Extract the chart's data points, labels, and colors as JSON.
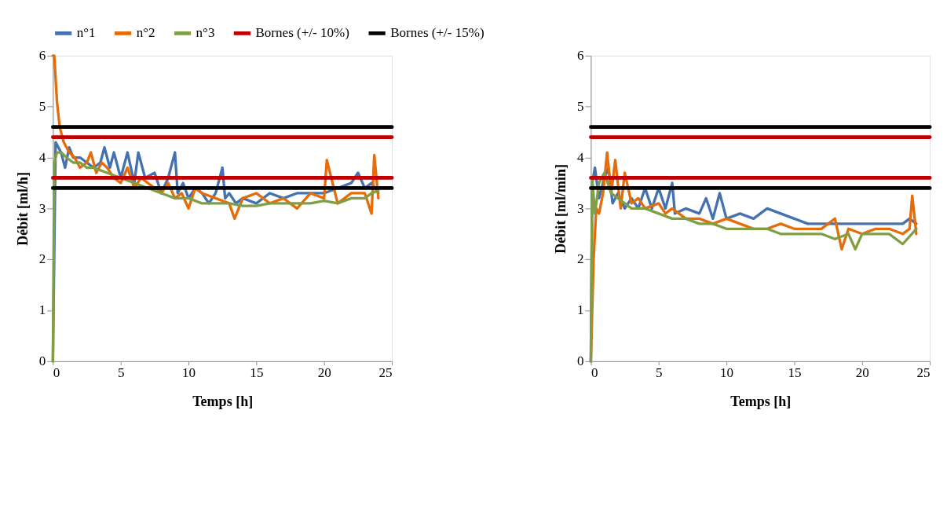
{
  "chart_data": [
    {
      "type": "line",
      "xlabel": "Temps [h]",
      "ylabel": "Débit [ml/h]",
      "xlim": [
        0,
        25
      ],
      "xticks": [
        0,
        5,
        10,
        15,
        20,
        25
      ],
      "ylim": [
        0,
        6
      ],
      "yticks": [
        0,
        1,
        2,
        3,
        4,
        5,
        6
      ],
      "grid": false,
      "legend": "top",
      "marker": "none",
      "line_style": "solid",
      "series": [
        {
          "name": "n°1",
          "color": "#4472b0",
          "x": [
            0,
            0.2,
            0.4,
            0.6,
            0.9,
            1.2,
            1.5,
            2,
            2.5,
            3,
            3.5,
            3.8,
            4.2,
            4.5,
            5,
            5.5,
            6,
            6.3,
            6.8,
            7.5,
            8,
            8.5,
            9,
            9.2,
            9.6,
            10,
            10.5,
            11,
            11.5,
            12,
            12.5,
            12.7,
            13,
            13.5,
            14,
            15,
            16,
            17,
            18,
            19,
            20,
            21,
            22,
            22.5,
            23,
            23.5,
            24
          ],
          "values": [
            0,
            4.3,
            4.2,
            4.1,
            3.8,
            4.2,
            4.0,
            4.0,
            3.9,
            3.8,
            3.9,
            4.2,
            3.8,
            4.1,
            3.6,
            4.1,
            3.5,
            4.1,
            3.6,
            3.7,
            3.3,
            3.6,
            4.1,
            3.3,
            3.5,
            3.2,
            3.4,
            3.3,
            3.1,
            3.3,
            3.8,
            3.2,
            3.3,
            3.1,
            3.2,
            3.1,
            3.3,
            3.2,
            3.3,
            3.3,
            3.3,
            3.4,
            3.5,
            3.7,
            3.4,
            3.5,
            3.3
          ]
        },
        {
          "name": "n°2",
          "color": "#e46c0a",
          "x": [
            0,
            0.1,
            0.3,
            0.5,
            0.8,
            1.2,
            1.6,
            2,
            2.5,
            2.8,
            3.2,
            3.6,
            4,
            4.5,
            5,
            5.5,
            6,
            6.5,
            7,
            7.5,
            8,
            8.5,
            9,
            9.5,
            10,
            10.5,
            11,
            12,
            13,
            13.4,
            14,
            15,
            16,
            17,
            18,
            19,
            20,
            20.2,
            21,
            22,
            23,
            23.5,
            23.7,
            24
          ],
          "values": [
            6,
            6,
            5.1,
            4.6,
            4.3,
            4.1,
            4.0,
            3.8,
            3.9,
            4.1,
            3.7,
            3.9,
            3.8,
            3.6,
            3.5,
            3.8,
            3.4,
            3.6,
            3.5,
            3.4,
            3.3,
            3.5,
            3.2,
            3.3,
            3.0,
            3.4,
            3.3,
            3.2,
            3.1,
            2.8,
            3.2,
            3.3,
            3.1,
            3.2,
            3.0,
            3.3,
            3.2,
            3.95,
            3.1,
            3.3,
            3.3,
            2.9,
            4.05,
            3.2
          ]
        },
        {
          "name": "n°3",
          "color": "#7f9f45",
          "x": [
            0,
            0.1,
            0.3,
            0.6,
            1,
            1.5,
            2,
            2.5,
            3,
            4,
            5,
            6,
            7,
            8,
            9,
            10,
            11,
            12,
            13,
            14,
            15,
            16,
            17,
            18,
            19,
            20,
            21,
            22,
            23,
            23.5,
            24
          ],
          "values": [
            0,
            3.9,
            4.1,
            4.1,
            4.0,
            3.9,
            3.9,
            3.8,
            3.8,
            3.7,
            3.6,
            3.5,
            3.4,
            3.3,
            3.2,
            3.2,
            3.1,
            3.1,
            3.1,
            3.05,
            3.05,
            3.1,
            3.1,
            3.1,
            3.1,
            3.15,
            3.1,
            3.2,
            3.2,
            3.3,
            3.35
          ]
        }
      ],
      "ref_lines": [
        {
          "axis": "y",
          "value": 3.6,
          "label": "Bornes (+/- 10%)",
          "color": "#c00000"
        },
        {
          "axis": "y",
          "value": 4.4,
          "label": null,
          "color": "#c00000"
        },
        {
          "axis": "y",
          "value": 3.4,
          "label": "Bornes (+/- 15%)",
          "color": "#000000"
        },
        {
          "axis": "y",
          "value": 4.6,
          "label": null,
          "color": "#000000"
        }
      ]
    },
    {
      "type": "line",
      "xlabel": "Temps [h]",
      "ylabel": "Débit [ml/min]",
      "xlim": [
        0,
        25
      ],
      "xticks": [
        0,
        5,
        10,
        15,
        20,
        25
      ],
      "ylim": [
        0,
        6
      ],
      "yticks": [
        0,
        1,
        2,
        3,
        4,
        5,
        6
      ],
      "grid": false,
      "marker": "none",
      "line_style": "solid",
      "series": [
        {
          "color": "#4472b0",
          "x": [
            0,
            0.1,
            0.3,
            0.6,
            1,
            1.3,
            1.6,
            2,
            2.5,
            3,
            3.5,
            4,
            4.5,
            5,
            5.5,
            6,
            6.2,
            7,
            8,
            8.5,
            9,
            9.5,
            10,
            11,
            12,
            13,
            14,
            15,
            16,
            17,
            18,
            19,
            20,
            21,
            22,
            23,
            23.5,
            24
          ],
          "values": [
            0,
            3.5,
            3.8,
            3.2,
            3.6,
            3.8,
            3.1,
            3.3,
            3.0,
            3.2,
            3.0,
            3.4,
            3.0,
            3.4,
            3.0,
            3.5,
            2.9,
            3.0,
            2.9,
            3.2,
            2.8,
            3.3,
            2.8,
            2.9,
            2.8,
            3.0,
            2.9,
            2.8,
            2.7,
            2.7,
            2.7,
            2.7,
            2.7,
            2.7,
            2.7,
            2.7,
            2.8,
            2.7
          ]
        },
        {
          "color": "#e46c0a",
          "x": [
            0,
            0.2,
            0.4,
            0.6,
            0.9,
            1.2,
            1.5,
            1.8,
            2.2,
            2.5,
            3,
            3.5,
            4,
            5,
            5.5,
            6,
            7,
            8,
            9,
            10,
            11,
            12,
            13,
            14,
            15,
            16,
            17,
            18,
            18.5,
            19,
            20,
            21,
            22,
            23,
            23.5,
            23.7,
            24
          ],
          "values": [
            0,
            2.0,
            3.0,
            2.9,
            3.3,
            4.1,
            3.3,
            3.95,
            3.0,
            3.7,
            3.1,
            3.2,
            3.0,
            3.1,
            2.9,
            3.0,
            2.8,
            2.8,
            2.7,
            2.8,
            2.7,
            2.6,
            2.6,
            2.7,
            2.6,
            2.6,
            2.6,
            2.8,
            2.2,
            2.6,
            2.5,
            2.6,
            2.6,
            2.5,
            2.6,
            3.25,
            2.5
          ]
        },
        {
          "color": "#7f9f45",
          "x": [
            0,
            0.1,
            0.3,
            0.6,
            1,
            1.5,
            2,
            2.5,
            3,
            4,
            5,
            6,
            7,
            8,
            9,
            10,
            11,
            12,
            13,
            14,
            15,
            16,
            17,
            18,
            19,
            19.5,
            20,
            21,
            22,
            23,
            24
          ],
          "values": [
            0,
            3.6,
            2.9,
            3.5,
            3.7,
            3.3,
            3.2,
            3.1,
            3.0,
            3.0,
            2.9,
            2.8,
            2.8,
            2.7,
            2.7,
            2.6,
            2.6,
            2.6,
            2.6,
            2.5,
            2.5,
            2.5,
            2.5,
            2.4,
            2.5,
            2.2,
            2.5,
            2.5,
            2.5,
            2.3,
            2.6
          ]
        }
      ],
      "ref_lines": [
        {
          "axis": "y",
          "value": 3.6,
          "label": null,
          "color": "#c00000"
        },
        {
          "axis": "y",
          "value": 4.4,
          "label": null,
          "color": "#c00000"
        },
        {
          "axis": "y",
          "value": 3.4,
          "label": null,
          "color": "#000000"
        },
        {
          "axis": "y",
          "value": 4.6,
          "label": null,
          "color": "#000000"
        }
      ]
    }
  ]
}
